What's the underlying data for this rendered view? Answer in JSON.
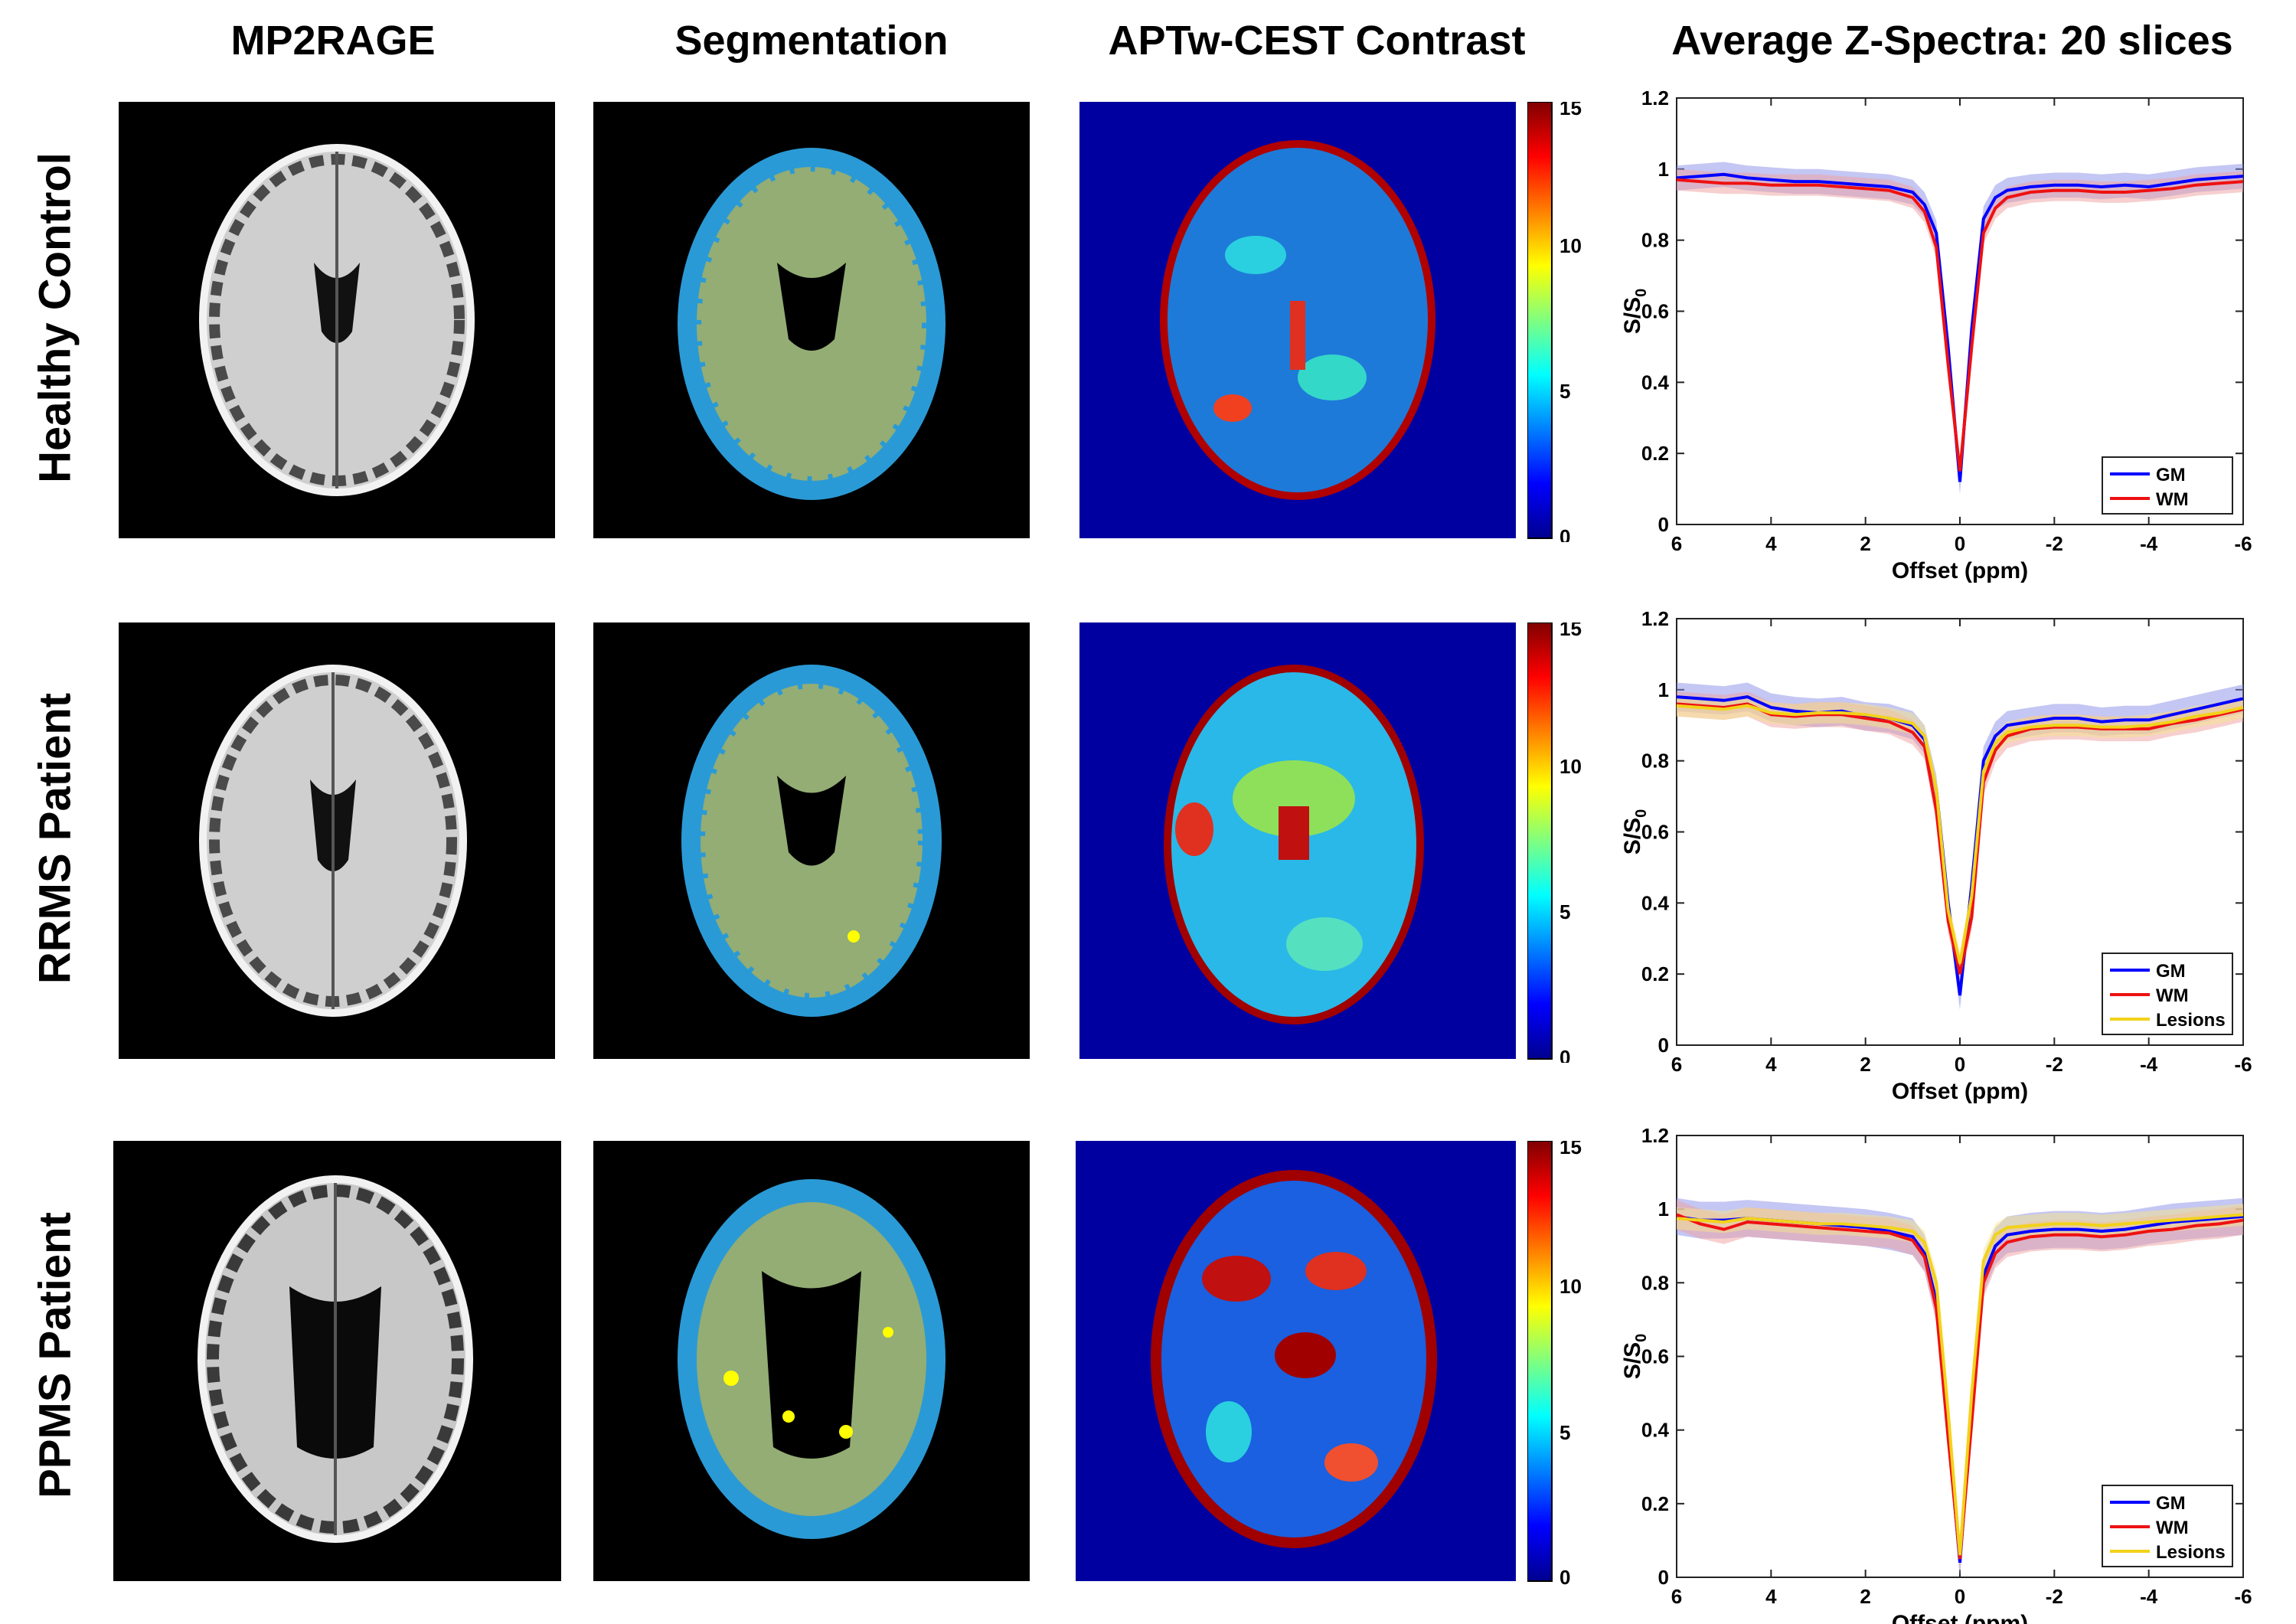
{
  "column_titles": [
    "MP2RAGE",
    "Segmentation",
    "APTw-CEST Contrast",
    "Average Z-Spectra: 20 slices"
  ],
  "row_titles": [
    "Healthy Control",
    "RRMS Patient",
    "PPMS Patient"
  ],
  "colors": {
    "gm": "#0000ff",
    "wm": "#ee1111",
    "lesions": "#f2d21a",
    "gm_fill": "#8a8ee8",
    "wm_fill": "#f0a0a0",
    "lesions_fill": "#f5e48a",
    "seg_gm": "#2a9ad6",
    "seg_wm": "#93ad74",
    "seg_lesion": "#ffff00",
    "cest_bg": "#0000a0"
  },
  "colorbar": {
    "ticks": [
      "0",
      "5",
      "10",
      "15"
    ]
  },
  "chart_data": [
    {
      "type": "line",
      "title": "Average Z-Spectra: 20 slices",
      "xlabel": "Offset (ppm)",
      "ylabel": "S/S0",
      "xlim": [
        6,
        -6
      ],
      "ylim": [
        0,
        1.2
      ],
      "xticks": [
        "6",
        "4",
        "2",
        "0",
        "-2",
        "-4",
        "-6"
      ],
      "yticks": [
        "0",
        "0.2",
        "0.4",
        "0.6",
        "0.8",
        "1",
        "1.2"
      ],
      "x": [
        6,
        5.5,
        5,
        4.5,
        4,
        3.5,
        3,
        2.5,
        2,
        1.5,
        1,
        0.75,
        0.5,
        0.25,
        0,
        -0.25,
        -0.5,
        -0.75,
        -1,
        -1.5,
        -2,
        -2.5,
        -3,
        -3.5,
        -4,
        -4.5,
        -5,
        -5.5,
        -6
      ],
      "series": [
        {
          "name": "GM",
          "values": [
            0.975,
            0.98,
            0.985,
            0.975,
            0.97,
            0.965,
            0.965,
            0.96,
            0.955,
            0.95,
            0.935,
            0.9,
            0.82,
            0.5,
            0.12,
            0.55,
            0.86,
            0.92,
            0.94,
            0.95,
            0.955,
            0.955,
            0.95,
            0.955,
            0.95,
            0.96,
            0.97,
            0.975,
            0.98
          ],
          "band": 0.035
        },
        {
          "name": "WM",
          "values": [
            0.97,
            0.965,
            0.96,
            0.96,
            0.955,
            0.955,
            0.955,
            0.95,
            0.945,
            0.94,
            0.92,
            0.88,
            0.78,
            0.45,
            0.15,
            0.5,
            0.82,
            0.89,
            0.92,
            0.935,
            0.94,
            0.94,
            0.935,
            0.935,
            0.94,
            0.945,
            0.955,
            0.96,
            0.965
          ],
          "band": 0.03
        }
      ]
    },
    {
      "type": "line",
      "title": "Average Z-Spectra: 20 slices",
      "xlabel": "Offset (ppm)",
      "ylabel": "S/S0",
      "xlim": [
        6,
        -6
      ],
      "ylim": [
        0,
        1.2
      ],
      "xticks": [
        "6",
        "4",
        "2",
        "0",
        "-2",
        "-4",
        "-6"
      ],
      "yticks": [
        "0",
        "0.2",
        "0.4",
        "0.6",
        "0.8",
        "1",
        "1.2"
      ],
      "x": [
        6,
        5.5,
        5,
        4.5,
        4,
        3.5,
        3,
        2.5,
        2,
        1.5,
        1,
        0.75,
        0.5,
        0.25,
        0,
        -0.25,
        -0.5,
        -0.75,
        -1,
        -1.5,
        -2,
        -2.5,
        -3,
        -3.5,
        -4,
        -4.5,
        -5,
        -5.5,
        -6
      ],
      "series": [
        {
          "name": "GM",
          "values": [
            0.98,
            0.975,
            0.97,
            0.98,
            0.95,
            0.94,
            0.935,
            0.94,
            0.925,
            0.92,
            0.9,
            0.86,
            0.72,
            0.4,
            0.14,
            0.45,
            0.8,
            0.87,
            0.9,
            0.91,
            0.92,
            0.92,
            0.91,
            0.915,
            0.915,
            0.93,
            0.945,
            0.96,
            0.975
          ],
          "band": 0.04
        },
        {
          "name": "WM",
          "values": [
            0.96,
            0.955,
            0.95,
            0.96,
            0.93,
            0.925,
            0.93,
            0.93,
            0.92,
            0.91,
            0.88,
            0.84,
            0.66,
            0.35,
            0.2,
            0.36,
            0.74,
            0.83,
            0.87,
            0.89,
            0.895,
            0.895,
            0.89,
            0.89,
            0.89,
            0.905,
            0.915,
            0.93,
            0.945
          ],
          "band": 0.035
        },
        {
          "name": "Lesions",
          "values": [
            0.955,
            0.95,
            0.945,
            0.955,
            0.935,
            0.93,
            0.935,
            0.935,
            0.93,
            0.92,
            0.905,
            0.87,
            0.72,
            0.38,
            0.23,
            0.42,
            0.77,
            0.85,
            0.88,
            0.895,
            0.9,
            0.9,
            0.895,
            0.895,
            0.9,
            0.91,
            0.925,
            0.935,
            0.95
          ],
          "band": 0.03
        }
      ]
    },
    {
      "type": "line",
      "title": "Average Z-Spectra: 20 slices",
      "xlabel": "Offset (ppm)",
      "ylabel": "S/S0",
      "xlim": [
        6,
        -6
      ],
      "ylim": [
        0,
        1.2
      ],
      "xticks": [
        "6",
        "4",
        "2",
        "0",
        "-2",
        "-4",
        "-6"
      ],
      "yticks": [
        "0",
        "0.2",
        "0.4",
        "0.6",
        "0.8",
        "1",
        "1.2"
      ],
      "x": [
        6,
        5.5,
        5,
        4.5,
        4,
        3.5,
        3,
        2.5,
        2,
        1.5,
        1,
        0.75,
        0.5,
        0.25,
        0,
        -0.25,
        -0.5,
        -0.75,
        -1,
        -1.5,
        -2,
        -2.5,
        -3,
        -3.5,
        -4,
        -4.5,
        -5,
        -5.5,
        -6
      ],
      "series": [
        {
          "name": "GM",
          "values": [
            0.98,
            0.97,
            0.97,
            0.975,
            0.97,
            0.965,
            0.96,
            0.955,
            0.95,
            0.94,
            0.925,
            0.88,
            0.75,
            0.4,
            0.04,
            0.45,
            0.82,
            0.9,
            0.93,
            0.94,
            0.945,
            0.945,
            0.94,
            0.945,
            0.955,
            0.965,
            0.97,
            0.975,
            0.98
          ],
          "band": 0.05
        },
        {
          "name": "WM",
          "values": [
            0.985,
            0.96,
            0.945,
            0.965,
            0.96,
            0.955,
            0.95,
            0.945,
            0.94,
            0.935,
            0.915,
            0.87,
            0.73,
            0.38,
            0.05,
            0.42,
            0.8,
            0.88,
            0.91,
            0.925,
            0.93,
            0.93,
            0.925,
            0.93,
            0.94,
            0.945,
            0.955,
            0.96,
            0.97
          ],
          "band": 0.04
        },
        {
          "name": "Lesions",
          "values": [
            0.975,
            0.97,
            0.965,
            0.975,
            0.97,
            0.965,
            0.96,
            0.96,
            0.955,
            0.95,
            0.94,
            0.91,
            0.8,
            0.45,
            0.06,
            0.5,
            0.86,
            0.93,
            0.95,
            0.955,
            0.96,
            0.96,
            0.955,
            0.96,
            0.965,
            0.97,
            0.975,
            0.98,
            0.985
          ],
          "band": 0.03
        }
      ]
    }
  ]
}
